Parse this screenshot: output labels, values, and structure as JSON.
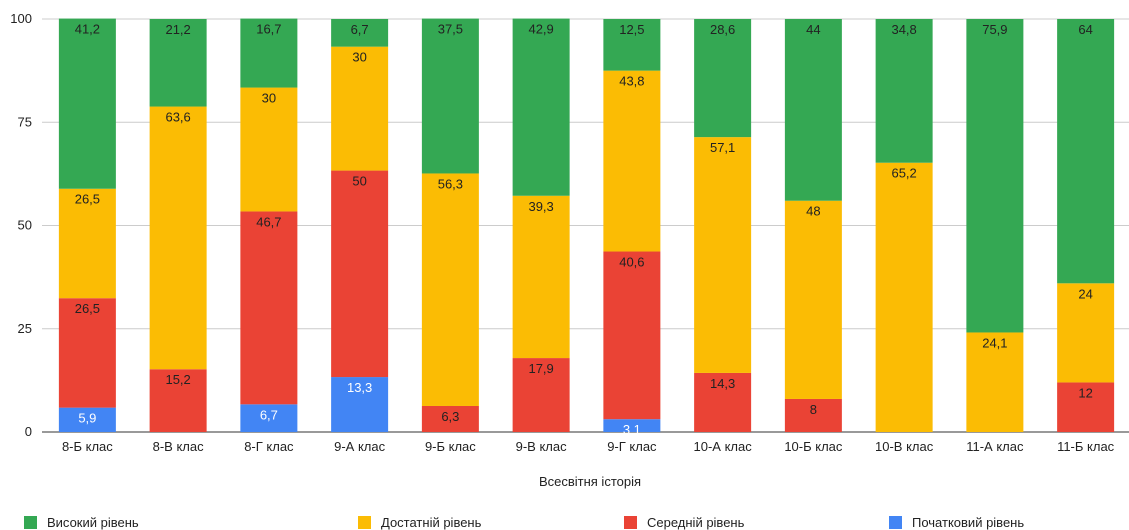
{
  "chart_data": {
    "type": "bar",
    "stacked": true,
    "xlabel": "Всесвітня історія",
    "ylabel": "",
    "ylim": [
      0,
      100
    ],
    "yticks": [
      "0",
      "25",
      "50",
      "75",
      "100"
    ],
    "grid": true,
    "legend_position": "bottom",
    "categories": [
      "8-Б клас",
      "8-В клас",
      "8-Г клас",
      "9-А клас",
      "9-Б клас",
      "9-В клас",
      "9-Г клас",
      "10-А клас",
      "10-Б клас",
      "10-В клас",
      "11-А клас",
      "11-Б клас"
    ],
    "series": [
      {
        "name": "Початковий рівень",
        "color": "#4285F4",
        "values": [
          5.9,
          0,
          6.7,
          13.3,
          0,
          0,
          3.1,
          0,
          0,
          0,
          0,
          0
        ],
        "labels": [
          "5,9",
          "0",
          "6,7",
          "13,3",
          "0",
          "0",
          "3,1",
          "0",
          "0",
          "0",
          "0",
          "0"
        ]
      },
      {
        "name": "Середній рівень",
        "color": "#EA4335",
        "values": [
          26.5,
          15.2,
          46.7,
          50,
          6.3,
          17.9,
          40.6,
          14.3,
          8,
          0,
          0,
          12
        ],
        "labels": [
          "26,5",
          "15,2",
          "46,7",
          "50",
          "6,3",
          "17,9",
          "40,6",
          "14,3",
          "8",
          "0",
          "0",
          "12"
        ]
      },
      {
        "name": "Достатній рівень",
        "color": "#FBBC04",
        "values": [
          26.5,
          63.6,
          30,
          30,
          56.3,
          39.3,
          43.8,
          57.1,
          48,
          65.2,
          24.1,
          24
        ],
        "labels": [
          "26,5",
          "63,6",
          "30",
          "30",
          "56,3",
          "39,3",
          "43,8",
          "57,1",
          "48",
          "65,2",
          "24,1",
          "24"
        ]
      },
      {
        "name": "Високий рівень",
        "color": "#34A853",
        "values": [
          41.2,
          21.2,
          16.7,
          6.7,
          37.5,
          42.9,
          12.5,
          28.6,
          44,
          34.8,
          75.9,
          64
        ],
        "labels": [
          "41,2",
          "21,2",
          "16,7",
          "6,7",
          "37,5",
          "42,9",
          "12,5",
          "28,6",
          "44",
          "34,8",
          "75,9",
          "64"
        ]
      }
    ]
  },
  "legend": [
    {
      "label": "Високий рівень",
      "color": "#34A853"
    },
    {
      "label": "Достатній рівень",
      "color": "#FBBC04"
    },
    {
      "label": "Середній рівень",
      "color": "#EA4335"
    },
    {
      "label": "Початковий рівень",
      "color": "#4285F4"
    }
  ]
}
